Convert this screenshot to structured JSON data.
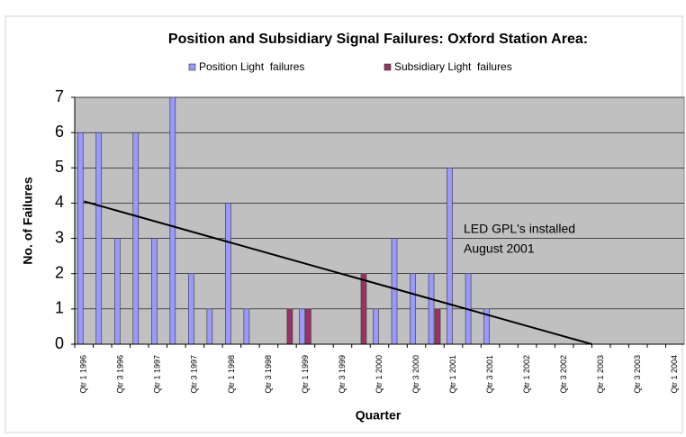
{
  "chart_data": {
    "type": "bar",
    "title": "Position and Subsidiary Signal Failures: Oxford Station Area:",
    "y_label": "No. of Failures",
    "x_label": "Quarter",
    "categories": [
      "Qtr 1 1996",
      null,
      "Qtr 3 1996",
      null,
      "Qtr 1 1997",
      null,
      "Qtr 3 1997",
      null,
      "Qtr 1 1998",
      null,
      "Qtr 3 1998",
      null,
      "Qtr 1 1999",
      null,
      "Qtr 3 1999",
      null,
      "Qtr 1 2000",
      null,
      "Qtr 3 2000",
      null,
      "Qtr 1 2001",
      null,
      "Qtr 3 2001",
      null,
      "Qtr 1 2002",
      null,
      "Qtr 3 2002",
      null,
      "Qtr 1 2003",
      null,
      "Qtr 3 2003",
      null,
      "Qtr 1 2004"
    ],
    "series": [
      {
        "name": "Position Light  failures",
        "color": "#9999ff",
        "values": [
          6,
          6,
          3,
          6,
          3,
          7,
          2,
          1,
          4,
          1,
          0,
          0,
          1,
          0,
          0,
          0,
          1,
          3,
          2,
          2,
          5,
          2,
          1,
          0,
          0,
          0,
          0,
          0,
          0,
          0,
          0,
          0,
          0
        ]
      },
      {
        "name": "Subsidiary Light  failures",
        "color": "#993366",
        "values": [
          0,
          0,
          0,
          0,
          0,
          0,
          0,
          0,
          0,
          0,
          0,
          1,
          1,
          0,
          0,
          2,
          0,
          0,
          0,
          1,
          0,
          0,
          0,
          0,
          0,
          0,
          0,
          0,
          0,
          0,
          0,
          0,
          0
        ]
      }
    ],
    "trendline": {
      "x": [
        0,
        27.5
      ],
      "values": [
        4.05,
        0
      ],
      "color": "#000000"
    },
    "annotation": [
      "LED GPL's installed",
      "August 2001"
    ],
    "ylim": [
      0,
      7
    ],
    "yticks": [
      0,
      1,
      2,
      3,
      4,
      5,
      6,
      7
    ],
    "grid": true,
    "legend": "top"
  }
}
